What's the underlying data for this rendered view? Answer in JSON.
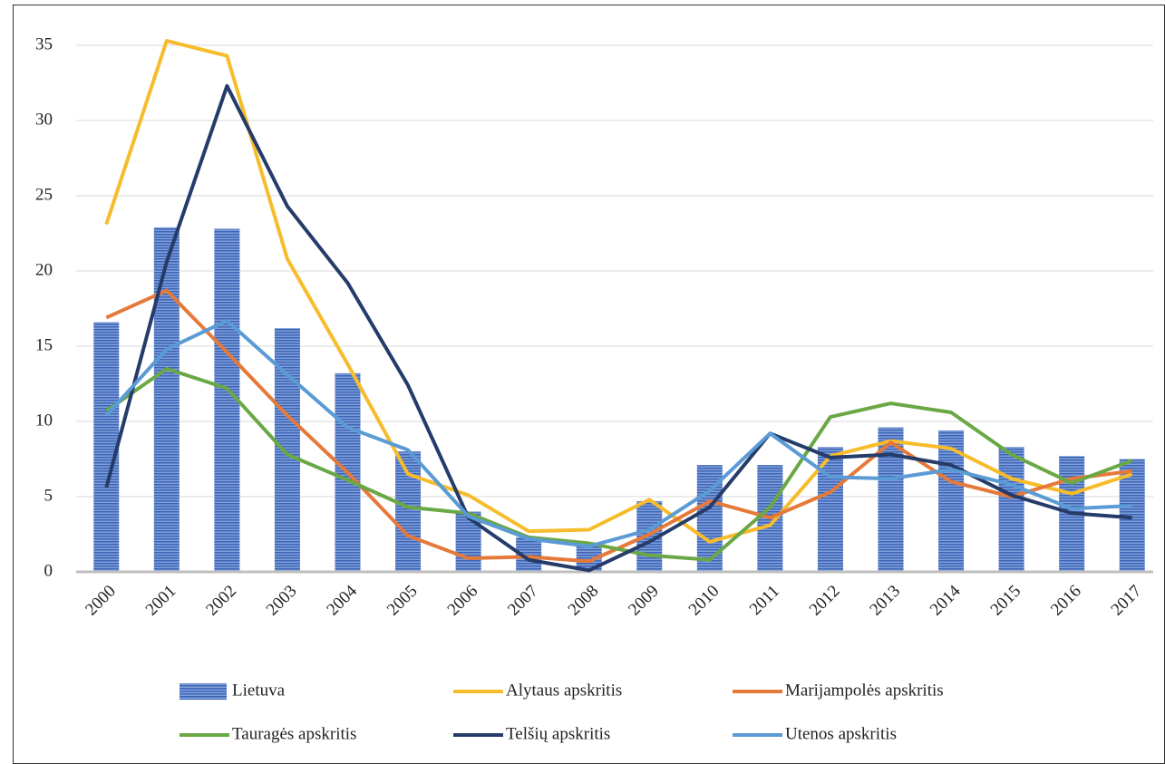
{
  "chart_data": {
    "type": "combo",
    "categories": [
      "2000",
      "2001",
      "2002",
      "2003",
      "2004",
      "2005",
      "2006",
      "2007",
      "2008",
      "2009",
      "2010",
      "2011",
      "2012",
      "2013",
      "2014",
      "2015",
      "2016",
      "2017"
    ],
    "ylim": [
      0,
      35
    ],
    "yticks": [
      0,
      5,
      10,
      15,
      20,
      25,
      30,
      35
    ],
    "grid": true,
    "series": [
      {
        "name": "Lietuva",
        "type": "bar",
        "color": "#4a73c2",
        "values": [
          16.6,
          22.9,
          22.8,
          16.2,
          13.2,
          8.0,
          4.0,
          2.3,
          1.8,
          4.7,
          7.1,
          7.1,
          8.3,
          9.6,
          9.4,
          8.3,
          7.7,
          7.5
        ]
      },
      {
        "name": "Alytaus apskritis",
        "type": "line",
        "color": "#f6bc2b",
        "values": [
          23.1,
          35.3,
          34.3,
          20.8,
          13.8,
          6.5,
          5.1,
          2.7,
          2.8,
          4.8,
          2.0,
          3.1,
          7.7,
          8.7,
          8.2,
          6.2,
          5.2,
          6.5
        ]
      },
      {
        "name": "Marijampolės apskritis",
        "type": "line",
        "color": "#e5793a",
        "values": [
          16.9,
          18.7,
          14.6,
          10.4,
          6.6,
          2.4,
          0.9,
          1.0,
          0.7,
          2.5,
          4.7,
          3.6,
          5.3,
          8.6,
          6.0,
          5.0,
          6.2,
          6.7
        ]
      },
      {
        "name": "Tauragės apskritis",
        "type": "line",
        "color": "#6aa745",
        "values": [
          10.7,
          13.5,
          12.2,
          7.8,
          6.1,
          4.3,
          3.9,
          2.3,
          1.9,
          1.1,
          0.8,
          4.3,
          10.3,
          11.2,
          10.6,
          7.8,
          5.9,
          7.4
        ]
      },
      {
        "name": "Telšių apskritis",
        "type": "line",
        "color": "#253c6a",
        "values": [
          5.6,
          20.6,
          32.3,
          24.3,
          19.2,
          12.4,
          3.6,
          0.8,
          0.1,
          2.0,
          4.3,
          9.2,
          7.6,
          7.8,
          7.1,
          5.1,
          3.9,
          3.6
        ]
      },
      {
        "name": "Utenos apskritis",
        "type": "line",
        "color": "#5b9bd5",
        "values": [
          10.4,
          14.8,
          16.7,
          13.1,
          9.6,
          8.1,
          3.7,
          2.2,
          1.7,
          2.8,
          5.4,
          9.2,
          6.3,
          6.2,
          6.8,
          5.8,
          4.2,
          4.4
        ]
      }
    ]
  }
}
